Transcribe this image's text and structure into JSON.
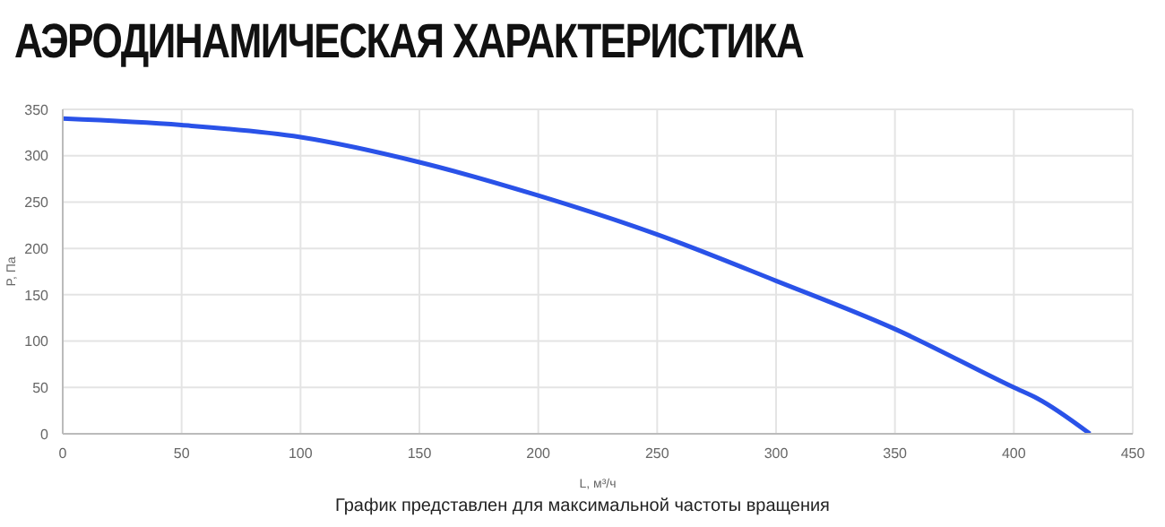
{
  "chart_data": {
    "type": "line",
    "title": "АЭРОДИНАМИЧЕСКАЯ ХАРАКТЕРИСТИКА",
    "xlabel": "L, м³/ч",
    "ylabel": "P, Па",
    "x": [
      0,
      50,
      100,
      150,
      200,
      250,
      300,
      350,
      400,
      410,
      432
    ],
    "series": [
      {
        "color": "#2a52e8",
        "values": [
          340,
          333,
          320,
          293,
          257,
          215,
          165,
          113,
          50,
          38,
          0
        ]
      }
    ],
    "xlim": [
      0,
      450
    ],
    "xticks": [
      0,
      50,
      100,
      150,
      200,
      250,
      300,
      350,
      400,
      450
    ],
    "ylim": [
      0,
      350
    ],
    "yticks": [
      0,
      50,
      100,
      150,
      200,
      250,
      300,
      350
    ],
    "grid": true,
    "marker": "none",
    "line_style": "solid",
    "annotations": [
      "График представлен для максимальной частоты вращения"
    ]
  }
}
